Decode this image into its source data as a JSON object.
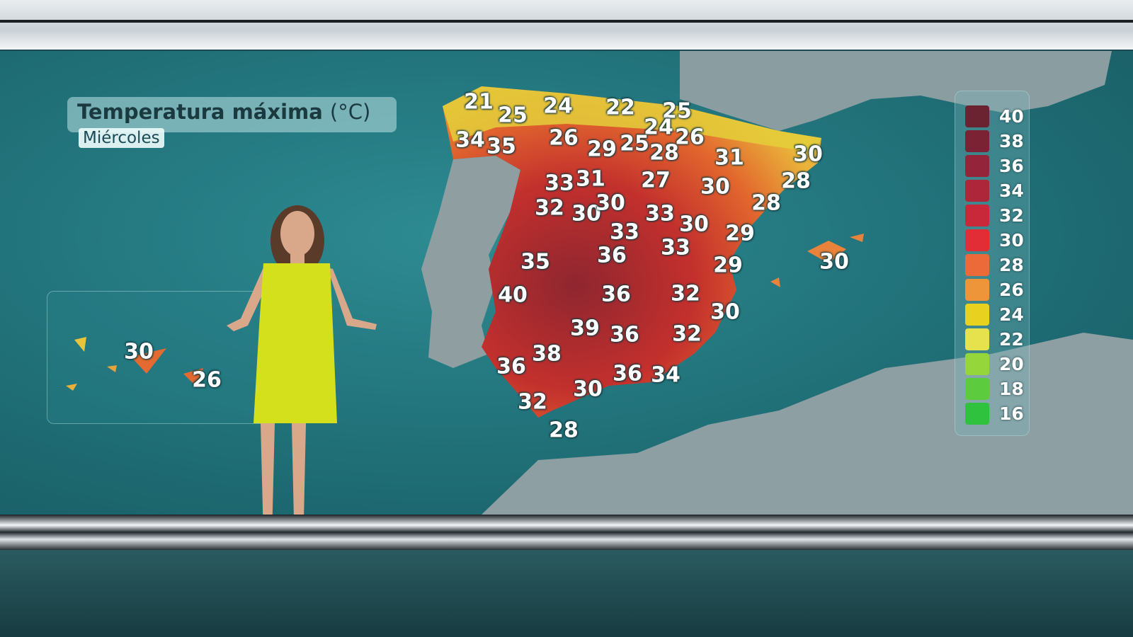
{
  "header": {
    "title": "Temperatura máxima",
    "unit": "(°C)",
    "day": "Miércoles"
  },
  "map": {
    "peninsula_temps": [
      "21",
      "25",
      "24",
      "22",
      "25",
      "24",
      "26",
      "34",
      "35",
      "26",
      "29",
      "25",
      "28",
      "31",
      "30",
      "33",
      "31",
      "27",
      "30",
      "28",
      "32",
      "30",
      "30",
      "33",
      "30",
      "28",
      "33",
      "29",
      "33",
      "35",
      "36",
      "29",
      "30",
      "40",
      "36",
      "32",
      "30",
      "39",
      "36",
      "32",
      "38",
      "36",
      "36",
      "34",
      "30",
      "32",
      "28"
    ],
    "canary_temps": [
      "30",
      "26"
    ]
  },
  "legend": {
    "items": [
      {
        "value": "40",
        "color": "#6b2231"
      },
      {
        "value": "38",
        "color": "#7c2235"
      },
      {
        "value": "36",
        "color": "#942439"
      },
      {
        "value": "34",
        "color": "#ad2639"
      },
      {
        "value": "32",
        "color": "#c8283a"
      },
      {
        "value": "30",
        "color": "#e22d37"
      },
      {
        "value": "28",
        "color": "#ec6a3a"
      },
      {
        "value": "26",
        "color": "#ef9539"
      },
      {
        "value": "24",
        "color": "#e8d21f"
      },
      {
        "value": "22",
        "color": "#e6e24e"
      },
      {
        "value": "20",
        "color": "#95d63a"
      },
      {
        "value": "18",
        "color": "#5ccc3e"
      },
      {
        "value": "16",
        "color": "#2fc23e"
      }
    ]
  }
}
